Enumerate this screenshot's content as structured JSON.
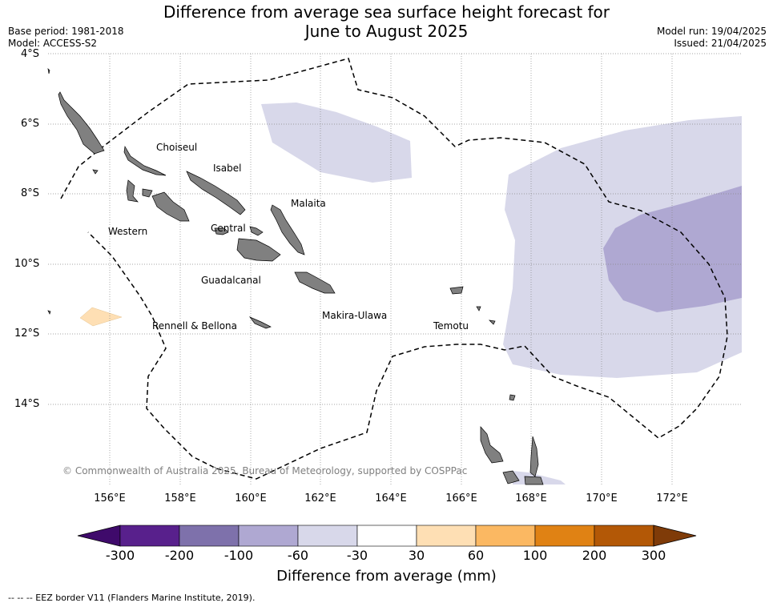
{
  "title_line1": "Difference from average sea surface height forecast for",
  "title_line2": "June to August 2025",
  "base_period": "Base period: 1981-2018",
  "model": "Model: ACCESS-S2",
  "model_run": "Model run: 19/04/2025",
  "issued": "Issued: 21/04/2025",
  "lat_labels": [
    "4°S",
    "6°S",
    "8°S",
    "10°S",
    "12°S",
    "14°S"
  ],
  "lon_labels": [
    "156°E",
    "158°E",
    "160°E",
    "162°E",
    "164°E",
    "166°E",
    "168°E",
    "170°E",
    "172°E"
  ],
  "place_labels": {
    "choiseul": "Choiseul",
    "isabel": "Isabel",
    "malaita": "Malaita",
    "western": "Western",
    "central": "Central",
    "guadalcanal": "Guadalcanal",
    "makira": "Makira-Ulawa",
    "rennell": "Rennell & Bellona",
    "temotu": "Temotu"
  },
  "copyright": "© Commonwealth of Australia 2025, Bureau of Meteorology, supported by COSPPac",
  "colorbar": {
    "title": "Difference from average (mm)",
    "ticks": [
      "-300",
      "-200",
      "-100",
      "-60",
      "-30",
      "30",
      "60",
      "100",
      "200",
      "300"
    ],
    "colors": [
      "#3f0a6b",
      "#58208c",
      "#7e71ab",
      "#afa8d2",
      "#d8d8ea",
      "#ffffff",
      "#fedfb4",
      "#fbb862",
      "#e08214",
      "#b35806",
      "#7f3b08"
    ]
  },
  "footer": "--  --  -- EEZ border V11 (Flanders Marine Institute, 2019)."
}
